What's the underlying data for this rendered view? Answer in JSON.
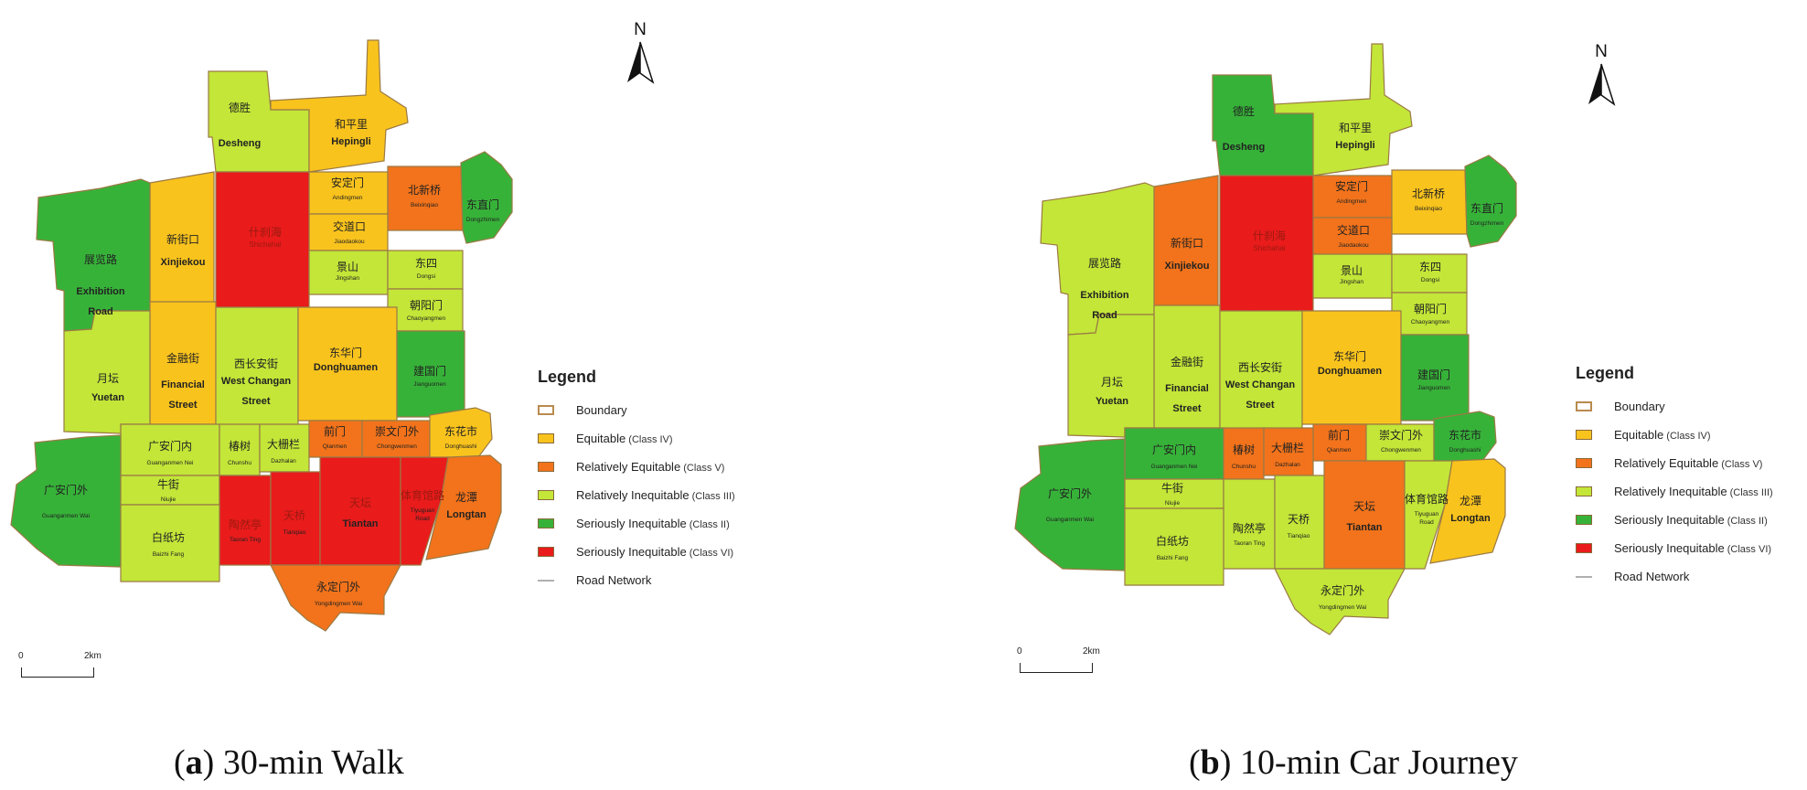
{
  "colors": {
    "class_iv": "#f9c31d",
    "class_v": "#f2731b",
    "class_iii": "#c3e638",
    "class_ii": "#37b239",
    "class_vi": "#e91b1b",
    "boundary": "#b98a4e",
    "road": "#b0b0b0"
  },
  "legend": {
    "title": "Legend",
    "items": [
      {
        "label": "Boundary",
        "cls": "",
        "key": "boundary"
      },
      {
        "label": "Equitable",
        "cls": "(Class IV)",
        "key": "class_iv"
      },
      {
        "label": "Relatively Equitable",
        "cls": "(Class V)",
        "key": "class_v"
      },
      {
        "label": "Relatively Inequitable",
        "cls": "(Class III)",
        "key": "class_iii"
      },
      {
        "label": "Seriously Inequitable",
        "cls": "(Class II)",
        "key": "class_ii"
      },
      {
        "label": "Seriously Inequitable",
        "cls": "(Class VI)",
        "key": "class_vi"
      },
      {
        "label": "Road Network",
        "cls": "",
        "key": "road"
      }
    ]
  },
  "north_label": "N",
  "scale": {
    "zero": "0",
    "max": "2km"
  },
  "panels": [
    {
      "letter": "a",
      "caption": "30-min Walk"
    },
    {
      "letter": "b",
      "caption": "10-min Car Journey"
    }
  ],
  "districts": {
    "desheng": {
      "cn": "德胜",
      "en": "Desheng"
    },
    "hepingli": {
      "cn": "和平里",
      "en": "Hepingli"
    },
    "andingmen": {
      "cn": "安定门",
      "en": "Andingmen"
    },
    "beixinqiao": {
      "cn": "北新桥",
      "en": "Beixinqiao"
    },
    "dongzhimen": {
      "cn": "东直门",
      "en": "Dongzhimen"
    },
    "jiaodaokou": {
      "cn": "交道口",
      "en": "Jiaodaokou"
    },
    "shichahai": {
      "cn": "什刹海",
      "en": "Shichahai"
    },
    "xinjiekou": {
      "cn": "新街口",
      "en": "Xinjiekou"
    },
    "exhibition": {
      "cn": "展览路",
      "en1": "Exhibition",
      "en2": "Road"
    },
    "jingshan": {
      "cn": "景山",
      "en": "Jingshan"
    },
    "dongsi": {
      "cn": "东四",
      "en": "Dongsi"
    },
    "chaoyangmen": {
      "cn": "朝阳门",
      "en": "Chaoyangmen"
    },
    "jinrongjie": {
      "cn": "金融街",
      "en1": "Financial",
      "en2": "Street"
    },
    "xichangan": {
      "cn": "西长安街",
      "en1": "West Changan",
      "en2": "Street"
    },
    "donghuamen": {
      "cn": "东华门",
      "en": "Donghuamen"
    },
    "jianguomen": {
      "cn": "建国门",
      "en": "Jianguomen"
    },
    "yuetan": {
      "cn": "月坛",
      "en": "Yuetan"
    },
    "guanganmennei": {
      "cn": "广安门内",
      "en": "Guanganmen Nei"
    },
    "chunshu": {
      "cn": "椿树",
      "en": "Chunshu"
    },
    "dazhalan": {
      "cn": "大栅栏",
      "en": "Dazhalan"
    },
    "qianmen": {
      "cn": "前门",
      "en": "Qianmen"
    },
    "chongwenmen": {
      "cn": "崇文门外",
      "en": "Chongwenmen"
    },
    "donghuashi": {
      "cn": "东花市",
      "en": "Donghuashi"
    },
    "guanganmenwai": {
      "cn": "广安门外",
      "en": "Guanganmen Wai"
    },
    "niujie": {
      "cn": "牛街",
      "en": "Niujie"
    },
    "taoranting": {
      "cn": "陶然亭",
      "en": "Taoran Ting"
    },
    "tianqiao": {
      "cn": "天桥",
      "en": "Tianqiao"
    },
    "tiantan": {
      "cn": "天坛",
      "en": "Tiantan"
    },
    "tiyuguan": {
      "cn": "体育馆路",
      "en1": "Tiyuguan",
      "en2": "Road"
    },
    "longtan": {
      "cn": "龙潭",
      "en": "Longtan"
    },
    "baizhifang": {
      "cn": "白纸坊",
      "en": "Baizhi Fang"
    },
    "yongdingmen": {
      "cn": "永定门外",
      "en": "Yongdingmen Wai"
    }
  },
  "map_classes": {
    "a": {
      "desheng": "class_iii",
      "hepingli": "class_iv",
      "andingmen": "class_iv",
      "beixinqiao": "class_v",
      "dongzhimen": "class_ii",
      "jiaodaokou": "class_iv",
      "shichahai": "class_vi",
      "xinjiekou": "class_iv",
      "exhibition": "class_ii",
      "jingshan": "class_iii",
      "dongsi": "class_iii",
      "chaoyangmen": "class_iii",
      "jinrongjie": "class_iv",
      "xichangan": "class_iii",
      "donghuamen": "class_iv",
      "jianguomen": "class_ii",
      "yuetan": "class_iii",
      "guanganmennei": "class_iii",
      "chunshu": "class_iii",
      "dazhalan": "class_iii",
      "qianmen": "class_v",
      "chongwenmen": "class_v",
      "donghuashi": "class_iv",
      "guanganmenwai": "class_ii",
      "niujie": "class_iii",
      "taoranting": "class_vi",
      "tianqiao": "class_vi",
      "tiantan": "class_vi",
      "tiyuguan": "class_vi",
      "longtan": "class_v",
      "baizhifang": "class_iii",
      "yongdingmen": "class_v"
    },
    "b": {
      "desheng": "class_ii",
      "hepingli": "class_iii",
      "andingmen": "class_v",
      "beixinqiao": "class_iv",
      "dongzhimen": "class_ii",
      "jiaodaokou": "class_v",
      "shichahai": "class_vi",
      "xinjiekou": "class_v",
      "exhibition": "class_iii",
      "jingshan": "class_iii",
      "dongsi": "class_iii",
      "chaoyangmen": "class_iii",
      "jinrongjie": "class_iii",
      "xichangan": "class_iii",
      "donghuamen": "class_iv",
      "jianguomen": "class_ii",
      "yuetan": "class_iii",
      "guanganmennei": "class_ii",
      "chunshu": "class_v",
      "dazhalan": "class_v",
      "qianmen": "class_v",
      "chongwenmen": "class_iii",
      "donghuashi": "class_ii",
      "guanganmenwai": "class_ii",
      "niujie": "class_iii",
      "taoranting": "class_iii",
      "tianqiao": "class_iii",
      "tiantan": "class_v",
      "tiyuguan": "class_iii",
      "longtan": "class_iv",
      "baizhifang": "class_iii",
      "yongdingmen": "class_iii"
    }
  }
}
